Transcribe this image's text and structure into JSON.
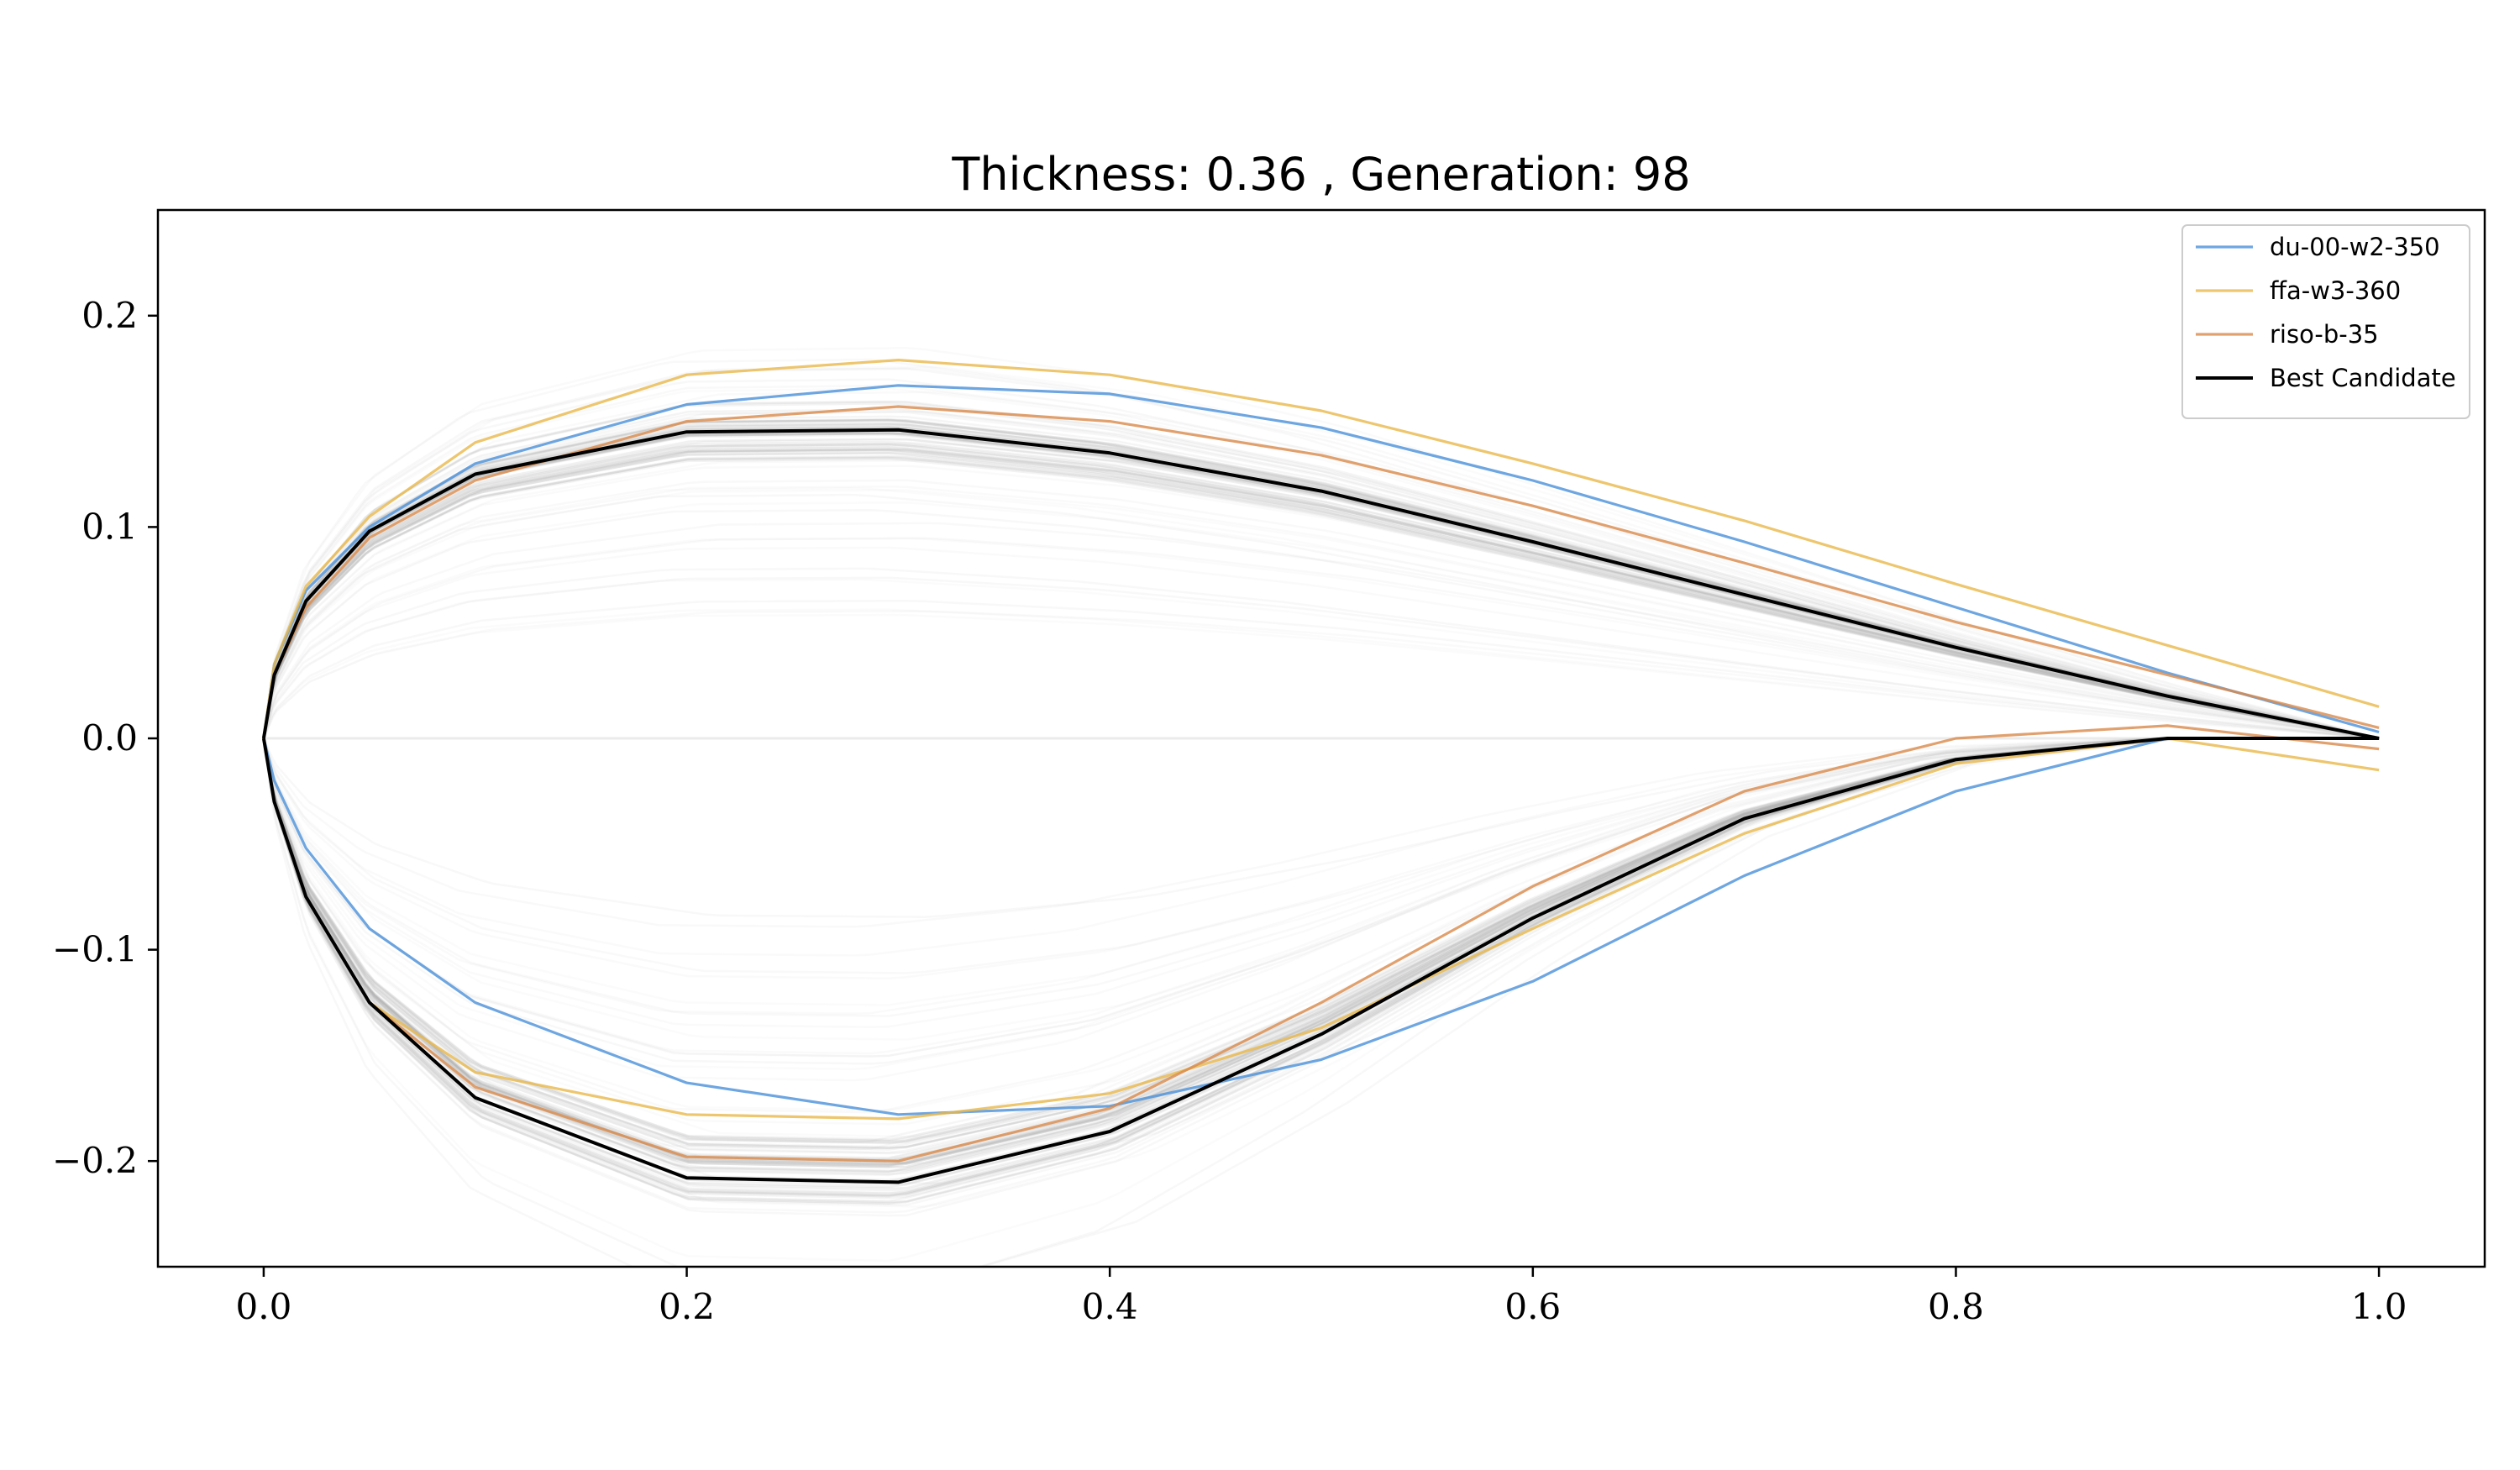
{
  "chart_data": {
    "type": "line",
    "title": "Thickness: 0.36 , Generation: 98",
    "xlabel": "",
    "ylabel": "",
    "xlim": [
      -0.05,
      1.05
    ],
    "ylim": [
      -0.25,
      0.25
    ],
    "x_ticks": [
      0.0,
      0.2,
      0.4,
      0.6,
      0.8,
      1.0
    ],
    "x_tick_labels": [
      "0.0",
      "0.2",
      "0.4",
      "0.6",
      "0.8",
      "1.0"
    ],
    "y_ticks": [
      0.2,
      0.1,
      0.0,
      -0.1,
      -0.2
    ],
    "y_tick_labels": [
      "0.2",
      "0.1",
      "0.0",
      "−0.1",
      "−0.2"
    ],
    "grid": false,
    "legend_position": "top-right",
    "background_population": {
      "description_color": "#b0b0b0",
      "upper_max_y_range": [
        0.14,
        0.16
      ],
      "lower_min_y_range": [
        -0.195,
        -0.215
      ]
    },
    "series": [
      {
        "name": "du-00-w2-350",
        "color": "#4a90d9",
        "upper": {
          "x": [
            0.0,
            0.005,
            0.02,
            0.05,
            0.1,
            0.2,
            0.3,
            0.4,
            0.5,
            0.6,
            0.7,
            0.8,
            0.9,
            1.0
          ],
          "y": [
            0.0,
            0.035,
            0.07,
            0.1,
            0.13,
            0.158,
            0.167,
            0.163,
            0.147,
            0.122,
            0.093,
            0.062,
            0.031,
            0.003
          ]
        },
        "lower": {
          "x": [
            0.0,
            0.005,
            0.02,
            0.05,
            0.1,
            0.2,
            0.3,
            0.4,
            0.5,
            0.6,
            0.7,
            0.8,
            0.9,
            1.0
          ],
          "y": [
            0.0,
            -0.02,
            -0.052,
            -0.09,
            -0.125,
            -0.163,
            -0.178,
            -0.174,
            -0.152,
            -0.115,
            -0.065,
            -0.025,
            0.0,
            0.0
          ]
        }
      },
      {
        "name": "ffa-w3-360",
        "color": "#e8b84a",
        "upper": {
          "x": [
            0.0,
            0.005,
            0.02,
            0.05,
            0.1,
            0.2,
            0.3,
            0.4,
            0.5,
            0.6,
            0.7,
            0.8,
            0.9,
            1.0
          ],
          "y": [
            0.0,
            0.035,
            0.072,
            0.105,
            0.14,
            0.172,
            0.179,
            0.172,
            0.155,
            0.13,
            0.103,
            0.073,
            0.044,
            0.015
          ]
        },
        "lower": {
          "x": [
            0.0,
            0.005,
            0.02,
            0.05,
            0.1,
            0.2,
            0.3,
            0.4,
            0.5,
            0.6,
            0.7,
            0.8,
            0.9,
            1.0
          ],
          "y": [
            0.0,
            -0.03,
            -0.075,
            -0.125,
            -0.158,
            -0.178,
            -0.18,
            -0.168,
            -0.137,
            -0.09,
            -0.045,
            -0.012,
            0.0,
            -0.015
          ]
        }
      },
      {
        "name": "riso-b-35",
        "color": "#d98a4a",
        "upper": {
          "x": [
            0.0,
            0.005,
            0.02,
            0.05,
            0.1,
            0.2,
            0.3,
            0.4,
            0.5,
            0.6,
            0.7,
            0.8,
            0.9,
            1.0
          ],
          "y": [
            0.0,
            0.03,
            0.062,
            0.095,
            0.122,
            0.15,
            0.157,
            0.15,
            0.134,
            0.11,
            0.083,
            0.055,
            0.03,
            0.005
          ]
        },
        "lower": {
          "x": [
            0.0,
            0.005,
            0.02,
            0.05,
            0.1,
            0.2,
            0.3,
            0.4,
            0.5,
            0.6,
            0.7,
            0.8,
            0.9,
            1.0
          ],
          "y": [
            0.0,
            -0.03,
            -0.075,
            -0.125,
            -0.165,
            -0.198,
            -0.2,
            -0.175,
            -0.125,
            -0.07,
            -0.025,
            0.0,
            0.006,
            -0.005
          ]
        }
      },
      {
        "name": "Best Candidate",
        "color": "#000000",
        "upper": {
          "x": [
            0.0,
            0.005,
            0.02,
            0.05,
            0.1,
            0.2,
            0.3,
            0.4,
            0.5,
            0.6,
            0.7,
            0.8,
            0.9,
            1.0
          ],
          "y": [
            0.0,
            0.03,
            0.065,
            0.098,
            0.125,
            0.145,
            0.146,
            0.135,
            0.117,
            0.093,
            0.068,
            0.043,
            0.02,
            0.0
          ]
        },
        "lower": {
          "x": [
            0.0,
            0.005,
            0.02,
            0.05,
            0.1,
            0.2,
            0.3,
            0.4,
            0.5,
            0.6,
            0.7,
            0.8,
            0.9,
            1.0
          ],
          "y": [
            0.0,
            -0.03,
            -0.075,
            -0.125,
            -0.17,
            -0.208,
            -0.21,
            -0.186,
            -0.14,
            -0.085,
            -0.038,
            -0.01,
            0.0,
            0.0
          ]
        }
      }
    ]
  }
}
